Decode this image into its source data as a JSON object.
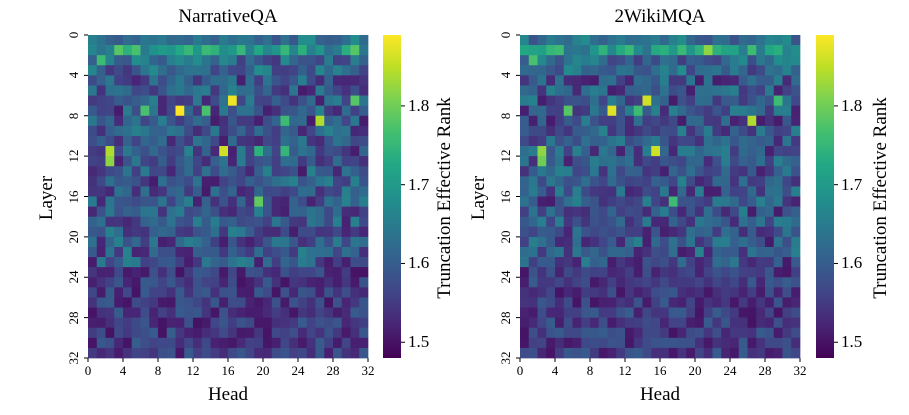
{
  "chart_data": [
    {
      "type": "heatmap",
      "title": "NarrativeQA",
      "xlabel": "Head",
      "ylabel": "Layer",
      "x_ticks": [
        "0",
        "4",
        "8",
        "12",
        "16",
        "20",
        "24",
        "28",
        "32"
      ],
      "y_ticks": [
        "0",
        "4",
        "8",
        "12",
        "16",
        "20",
        "24",
        "28",
        "32"
      ],
      "n_rows": 32,
      "n_cols": 32,
      "colorbar": {
        "label": "Truncation Effective Rank",
        "min": 1.48,
        "max": 1.89,
        "ticks": [
          "1.5",
          "1.6",
          "1.7",
          "1.8"
        ],
        "colormap": "viridis"
      },
      "highlights": [
        {
          "layer": 1,
          "head": 3,
          "value": 1.78
        },
        {
          "layer": 1,
          "head": 5,
          "value": 1.77
        },
        {
          "layer": 1,
          "head": 30,
          "value": 1.78
        },
        {
          "layer": 2,
          "head": 1,
          "value": 1.76
        },
        {
          "layer": 6,
          "head": 16,
          "value": 1.88
        },
        {
          "layer": 6,
          "head": 30,
          "value": 1.78
        },
        {
          "layer": 7,
          "head": 6,
          "value": 1.77
        },
        {
          "layer": 7,
          "head": 10,
          "value": 1.89
        },
        {
          "layer": 7,
          "head": 13,
          "value": 1.77
        },
        {
          "layer": 8,
          "head": 26,
          "value": 1.84
        },
        {
          "layer": 8,
          "head": 22,
          "value": 1.76
        },
        {
          "layer": 11,
          "head": 2,
          "value": 1.84
        },
        {
          "layer": 11,
          "head": 15,
          "value": 1.86
        },
        {
          "layer": 11,
          "head": 19,
          "value": 1.74
        },
        {
          "layer": 11,
          "head": 22,
          "value": 1.75
        },
        {
          "layer": 12,
          "head": 2,
          "value": 1.82
        },
        {
          "layer": 16,
          "head": 19,
          "value": 1.79
        }
      ]
    },
    {
      "type": "heatmap",
      "title": "2WikiMQA",
      "xlabel": "Head",
      "ylabel": "Layer",
      "x_ticks": [
        "0",
        "4",
        "8",
        "12",
        "16",
        "20",
        "24",
        "28",
        "32"
      ],
      "y_ticks": [
        "0",
        "4",
        "8",
        "12",
        "16",
        "20",
        "24",
        "28",
        "32"
      ],
      "n_rows": 32,
      "n_cols": 32,
      "colorbar": {
        "label": "Truncation Effective Rank",
        "min": 1.48,
        "max": 1.89,
        "ticks": [
          "1.5",
          "1.6",
          "1.7",
          "1.8"
        ],
        "colormap": "viridis"
      },
      "highlights": [
        {
          "layer": 1,
          "head": 4,
          "value": 1.76
        },
        {
          "layer": 1,
          "head": 21,
          "value": 1.82
        },
        {
          "layer": 2,
          "head": 1,
          "value": 1.77
        },
        {
          "layer": 6,
          "head": 14,
          "value": 1.86
        },
        {
          "layer": 6,
          "head": 29,
          "value": 1.76
        },
        {
          "layer": 7,
          "head": 5,
          "value": 1.78
        },
        {
          "layer": 7,
          "head": 10,
          "value": 1.87
        },
        {
          "layer": 7,
          "head": 13,
          "value": 1.76
        },
        {
          "layer": 8,
          "head": 26,
          "value": 1.84
        },
        {
          "layer": 11,
          "head": 2,
          "value": 1.82
        },
        {
          "layer": 11,
          "head": 15,
          "value": 1.86
        },
        {
          "layer": 12,
          "head": 2,
          "value": 1.8
        },
        {
          "layer": 16,
          "head": 17,
          "value": 1.76
        }
      ]
    }
  ]
}
